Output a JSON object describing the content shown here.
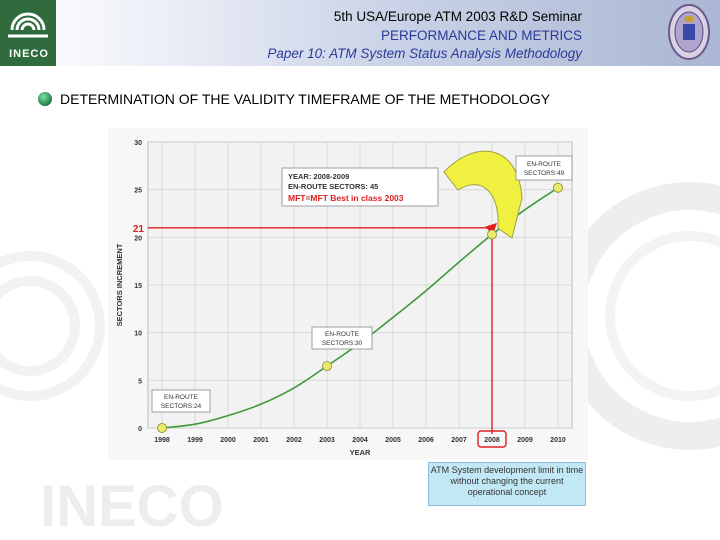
{
  "header": {
    "logo_text": "INECO",
    "line1": "5th USA/Europe ATM 2003 R&D Seminar",
    "line2": "PERFORMANCE AND METRICS",
    "line3": "Paper 10: ATM System Status Analysis Methodology"
  },
  "slide": {
    "title": "DETERMINATION OF THE VALIDITY TIMEFRAME OF THE METHODOLOGY",
    "watermark": "INECO"
  },
  "chart_data": {
    "type": "line",
    "xlabel": "YEAR",
    "ylabel": "SECTORS INCREMENT",
    "categories": [
      "1998",
      "1999",
      "2000",
      "2001",
      "2002",
      "2003",
      "2004",
      "2005",
      "2006",
      "2007",
      "2008",
      "2009",
      "2010"
    ],
    "ylim": [
      0,
      30
    ],
    "yticks": [
      0,
      5,
      10,
      15,
      20,
      25,
      30
    ],
    "series": [
      {
        "values": [
          0,
          0.4,
          1.3,
          2.5,
          4.2,
          6.5,
          8.9,
          11.6,
          14.4,
          17.4,
          20.3,
          22.9,
          25.2
        ]
      }
    ],
    "points": [
      {
        "x": "1998",
        "y": 0
      },
      {
        "x": "2003",
        "y": 6.5
      },
      {
        "x": "2008",
        "y": 20.3
      },
      {
        "x": "2010",
        "y": 25.2
      }
    ],
    "highlight": {
      "x": "2008",
      "y": 21,
      "y_label": "21"
    },
    "grid": true,
    "colors": {
      "line": "#3f9a3a",
      "point": "#eaea6a",
      "highlight": "#e02020",
      "plot_bg": "#f4f4f4"
    },
    "annotations": [
      {
        "line1": "EN-ROUTE",
        "line2": "SECTORS:24"
      },
      {
        "line1": "EN-ROUTE",
        "line2": "SECTORS:30"
      },
      {
        "line1": "EN-ROUTE",
        "line2": "SECTORS:49"
      }
    ],
    "callout": {
      "line1": "YEAR: 2008-2009",
      "line2": "EN-ROUTE SECTORS: 45",
      "line3": "MFT=MFT Best in class 2003"
    }
  },
  "note": "ATM System development limit in time without changing the current operational concept"
}
